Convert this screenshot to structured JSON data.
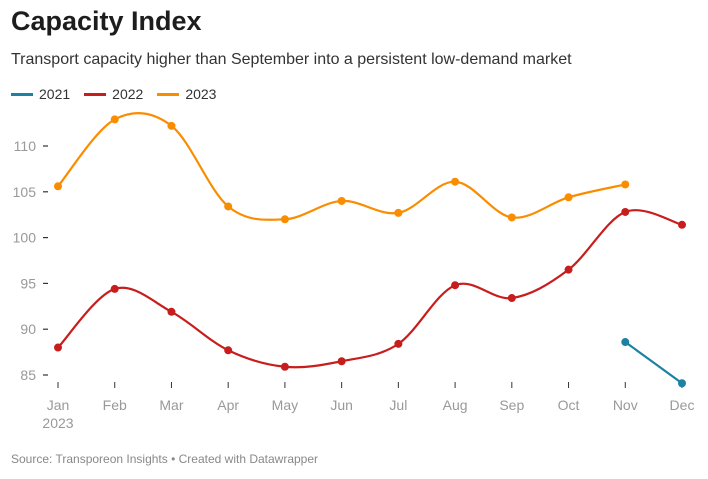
{
  "chart_data": {
    "type": "line",
    "title": "Capacity Index",
    "subtitle": "Transport capacity higher than September into a persistent low-demand market",
    "categories": [
      "Jan",
      "Feb",
      "Mar",
      "Apr",
      "May",
      "Jun",
      "Jul",
      "Aug",
      "Sep",
      "Oct",
      "Nov",
      "Dec"
    ],
    "first_category_sublabel": "2023",
    "y_ticks": [
      85,
      90,
      95,
      100,
      105,
      110
    ],
    "ylim": [
      83.5,
      114
    ],
    "series": [
      {
        "name": "2021",
        "color": "#1d81a2",
        "values": [
          null,
          null,
          null,
          null,
          null,
          null,
          null,
          null,
          null,
          null,
          88.6,
          84.1
        ]
      },
      {
        "name": "2022",
        "color": "#c71e1d",
        "values": [
          88.0,
          94.4,
          91.9,
          87.7,
          85.9,
          86.5,
          88.4,
          94.8,
          93.4,
          96.5,
          102.8,
          101.4
        ]
      },
      {
        "name": "2023",
        "color": "#fa8c00",
        "values": [
          105.6,
          112.9,
          112.2,
          103.4,
          102.0,
          104.0,
          102.7,
          106.1,
          102.2,
          104.4,
          105.8,
          null
        ]
      }
    ],
    "source": "Source: Transporeon Insights • Created with Datawrapper"
  }
}
